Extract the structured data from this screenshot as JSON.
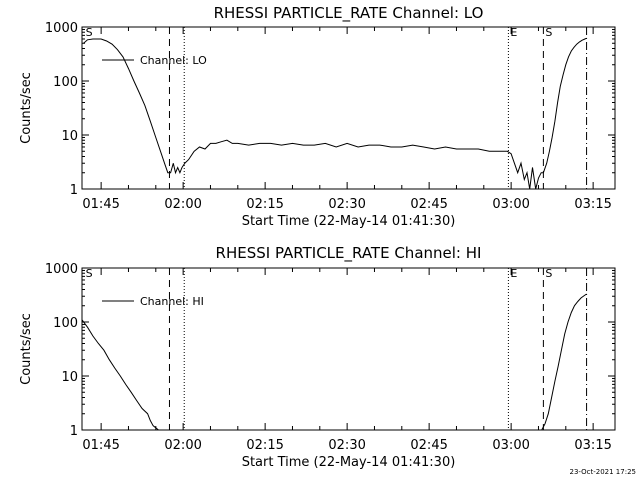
{
  "footer": {
    "timestamp": "23-Oct-2021 17:25"
  },
  "chart_data": [
    {
      "type": "line",
      "title": "RHESSI PARTICLE_RATE Channel: LO",
      "xlabel": "Start Time (22-May-14 01:41:30)",
      "ylabel": "Counts/sec",
      "yscale": "log",
      "ylim": [
        1,
        1000
      ],
      "xlim_minutes": [
        101.5,
        199.0
      ],
      "x_ticks": [
        {
          "t": 105,
          "label": "01:45"
        },
        {
          "t": 120,
          "label": "02:00"
        },
        {
          "t": 135,
          "label": "02:15"
        },
        {
          "t": 150,
          "label": "02:30"
        },
        {
          "t": 165,
          "label": "02:45"
        },
        {
          "t": 180,
          "label": "03:00"
        },
        {
          "t": 195,
          "label": "03:15"
        }
      ],
      "y_ticks": [
        {
          "v": 1,
          "label": "1"
        },
        {
          "v": 10,
          "label": "10"
        },
        {
          "v": 100,
          "label": "100"
        },
        {
          "v": 1000,
          "label": "1000"
        }
      ],
      "legend": {
        "label": "Channel: LO",
        "position": "top-left"
      },
      "markers": [
        {
          "t": 101.8,
          "style": "none",
          "label": "S"
        },
        {
          "t": 117.5,
          "style": "dashed",
          "label": ""
        },
        {
          "t": 120.2,
          "style": "dotted",
          "label": ""
        },
        {
          "t": 179.5,
          "style": "dotted",
          "label": "E"
        },
        {
          "t": 185.9,
          "style": "dashed",
          "label": "S"
        },
        {
          "t": 193.8,
          "style": "dashdot",
          "label": ""
        }
      ],
      "series": [
        {
          "name": "Channel: LO",
          "x": [
            101.8,
            102.5,
            103.5,
            105.0,
            106.0,
            107.0,
            108.0,
            109.0,
            110.0,
            111.0,
            112.0,
            113.0,
            114.0,
            115.0,
            116.0,
            116.6,
            117.2,
            117.7,
            118.2,
            118.6,
            119.0,
            119.4,
            119.8,
            120.3,
            121.0,
            122.0,
            123.0,
            124.0,
            125.0,
            126.0,
            127.0,
            128.0,
            129.0,
            130.0,
            132.0,
            134.0,
            136.0,
            138.0,
            140.0,
            142.0,
            144.0,
            146.0,
            148.0,
            150.0,
            152.0,
            154.0,
            156.0,
            158.0,
            160.0,
            162.0,
            164.0,
            166.0,
            168.0,
            170.0,
            172.0,
            174.0,
            176.0,
            178.0,
            179.3,
            180.0,
            180.6,
            181.2,
            181.8,
            182.4,
            182.9,
            183.4,
            183.9,
            184.5,
            185.0,
            185.5,
            185.9,
            186.5,
            187.0,
            187.5,
            188.0,
            188.5,
            189.0,
            189.5,
            190.0,
            190.5,
            191.0,
            191.5,
            192.0,
            192.5,
            193.0,
            193.5,
            193.8
          ],
          "values": [
            500,
            580,
            600,
            600,
            550,
            480,
            380,
            280,
            170,
            100,
            60,
            35,
            18,
            9,
            4.5,
            3,
            2,
            2,
            3,
            2,
            2.5,
            2,
            2.5,
            3,
            3.5,
            5,
            6,
            5.5,
            7,
            7,
            7.5,
            8,
            7,
            7,
            6.5,
            7,
            7,
            6.5,
            7,
            6.5,
            6.5,
            7,
            6,
            7,
            6,
            6.5,
            6.5,
            6,
            6,
            6.5,
            6,
            5.5,
            6,
            5.5,
            5.5,
            5.5,
            5,
            5,
            5,
            4.5,
            3,
            2,
            3,
            1.5,
            2,
            1,
            2.5,
            1,
            1.6,
            2,
            2,
            3,
            5,
            9,
            18,
            40,
            80,
            130,
            200,
            280,
            360,
            420,
            480,
            530,
            570,
            600,
            620
          ]
        }
      ]
    },
    {
      "type": "line",
      "title": "RHESSI PARTICLE_RATE Channel: HI",
      "xlabel": "Start Time (22-May-14 01:41:30)",
      "ylabel": "Counts/sec",
      "yscale": "log",
      "ylim": [
        1,
        1000
      ],
      "xlim_minutes": [
        101.5,
        199.0
      ],
      "x_ticks": [
        {
          "t": 105,
          "label": "01:45"
        },
        {
          "t": 120,
          "label": "02:00"
        },
        {
          "t": 135,
          "label": "02:15"
        },
        {
          "t": 150,
          "label": "02:30"
        },
        {
          "t": 165,
          "label": "02:45"
        },
        {
          "t": 180,
          "label": "03:00"
        },
        {
          "t": 195,
          "label": "03:15"
        }
      ],
      "y_ticks": [
        {
          "v": 1,
          "label": "1"
        },
        {
          "v": 10,
          "label": "10"
        },
        {
          "v": 100,
          "label": "100"
        },
        {
          "v": 1000,
          "label": "1000"
        }
      ],
      "legend": {
        "label": "Channel: HI",
        "position": "top-left"
      },
      "markers": [
        {
          "t": 101.8,
          "style": "none",
          "label": "S"
        },
        {
          "t": 117.5,
          "style": "dashed",
          "label": ""
        },
        {
          "t": 120.2,
          "style": "dotted",
          "label": ""
        },
        {
          "t": 179.5,
          "style": "dotted",
          "label": "E"
        },
        {
          "t": 185.9,
          "style": "dashed",
          "label": "S"
        },
        {
          "t": 193.8,
          "style": "dashdot",
          "label": ""
        }
      ],
      "series": [
        {
          "name": "Channel: HI",
          "x": [
            101.5,
            102.5,
            103.5,
            104.5,
            105.5,
            106.5,
            107.5,
            108.5,
            109.5,
            110.5,
            111.5,
            112.5,
            113.5,
            114.0,
            114.5,
            115.0,
            115.5,
            185.6,
            186.2,
            186.8,
            187.4,
            188.0,
            188.6,
            189.2,
            189.8,
            190.4,
            191.0,
            191.6,
            192.2,
            192.8,
            193.4,
            193.8
          ],
          "values": [
            110,
            80,
            55,
            40,
            30,
            20,
            14,
            10,
            7,
            5,
            3.5,
            2.5,
            2,
            1.5,
            1.2,
            1.1,
            1,
            1,
            1.3,
            2,
            4,
            8,
            15,
            30,
            60,
            100,
            150,
            200,
            240,
            280,
            310,
            330
          ]
        }
      ]
    }
  ]
}
